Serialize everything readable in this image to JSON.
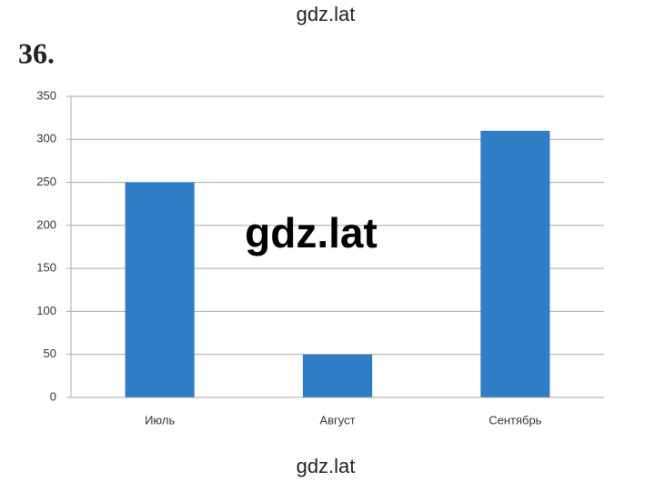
{
  "watermarks": [
    "gdz.lat",
    "gdz.lat",
    "gdz.lat"
  ],
  "exercise_number": "36.",
  "chart_data": {
    "type": "bar",
    "categories": [
      "Июль",
      "Август",
      "Сентябрь"
    ],
    "values": [
      250,
      50,
      310
    ],
    "color": "#2f7ec5",
    "ylim": [
      0,
      350
    ],
    "yticks": [
      0,
      50,
      100,
      150,
      200,
      250,
      300,
      350
    ],
    "grid": true
  }
}
